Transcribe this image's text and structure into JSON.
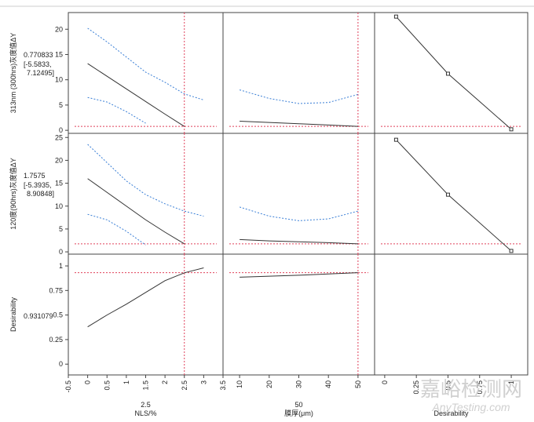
{
  "chart_data": {
    "type": "profiler",
    "pred_color": "#333333",
    "ci_color": "#3a7fd6",
    "ref_color": "#e0405a",
    "factors": [
      {
        "name": "NLS/%",
        "current": 2.5,
        "xlim": [
          -0.5,
          3.5
        ],
        "xticks": [
          -0.5,
          0,
          0.5,
          1,
          1.5,
          2,
          2.5,
          3,
          3.5
        ]
      },
      {
        "name": "膜厚(μm)",
        "current": 50,
        "xlim": [
          4.4,
          55.6
        ],
        "xticks": [
          10,
          20,
          30,
          40,
          50
        ]
      },
      {
        "name": "Desirability",
        "xlim": [
          -0.08,
          1.13
        ],
        "xticks": [
          0,
          0.25,
          0.5,
          0.75,
          1
        ]
      }
    ],
    "responses": [
      {
        "name": "313nm (300hrs)灰度值ΔY",
        "current": 0.770833,
        "interval_text": [
          "[-5.5833,",
          "7.12495]"
        ],
        "ylim": [
          -0.6,
          23.3
        ],
        "yticks": [
          0,
          5,
          10,
          15,
          20
        ],
        "profiles": [
          {
            "x": [
              0,
              0.5,
              1,
              1.5,
              2,
              2.5,
              3
            ],
            "predicted": [
              13.2,
              10.7,
              8.2,
              5.7,
              3.2,
              0.77,
              null
            ],
            "upper": [
              20.2,
              17.5,
              14.5,
              11.5,
              9.5,
              7.2,
              6.0
            ],
            "lower": [
              6.5,
              5.6,
              3.7,
              1.4,
              null,
              null,
              null
            ]
          },
          {
            "x": [
              10,
              20,
              30,
              40,
              50
            ],
            "predicted": [
              1.8,
              1.55,
              1.3,
              1.05,
              0.77
            ],
            "upper": [
              8.0,
              6.3,
              5.3,
              5.5,
              7.1
            ]
          },
          {
            "x": [
              0.09,
              0.5,
              1
            ],
            "predicted": [
              22.5,
              11.2,
              0.2
            ]
          }
        ]
      },
      {
        "name": "120度(90hrs)灰度值ΔY",
        "current": 1.7575,
        "interval_text": [
          "[-5.3935,",
          "8.90848]"
        ],
        "ylim": [
          -0.5,
          25.9
        ],
        "yticks": [
          0,
          5,
          10,
          15,
          20,
          25
        ],
        "profiles": [
          {
            "x": [
              0,
              0.5,
              1,
              1.5,
              2,
              2.5,
              3
            ],
            "predicted": [
              16.0,
              13.0,
              10.0,
              7.0,
              4.3,
              1.76,
              null
            ],
            "upper": [
              23.5,
              19.5,
              15.5,
              12.5,
              10.5,
              8.9,
              7.8
            ],
            "lower": [
              8.2,
              7.0,
              4.5,
              1.5,
              null,
              null,
              null
            ]
          },
          {
            "x": [
              10,
              20,
              30,
              40,
              50
            ],
            "predicted": [
              2.7,
              2.4,
              2.2,
              2.0,
              1.76
            ],
            "upper": [
              9.8,
              7.8,
              6.8,
              7.2,
              8.9
            ]
          },
          {
            "x": [
              0.09,
              0.5,
              1
            ],
            "predicted": [
              24.5,
              12.5,
              0.2
            ]
          }
        ]
      },
      {
        "name": "Desirability",
        "current": 0.931079,
        "ylim": [
          -0.11,
          1.12
        ],
        "yticks": [
          0,
          0.25,
          0.5,
          0.75,
          1
        ],
        "profiles": [
          {
            "x": [
              0,
              0.5,
              1,
              1.5,
              2,
              2.5,
              3
            ],
            "predicted": [
              0.38,
              0.5,
              0.61,
              0.73,
              0.85,
              0.93,
              0.98
            ]
          },
          {
            "x": [
              10,
              20,
              30,
              40,
              50
            ],
            "predicted": [
              0.885,
              0.895,
              0.905,
              0.918,
              0.931
            ]
          }
        ]
      }
    ],
    "watermark": [
      "嘉峪检测网",
      "AnyTesting.com"
    ]
  }
}
